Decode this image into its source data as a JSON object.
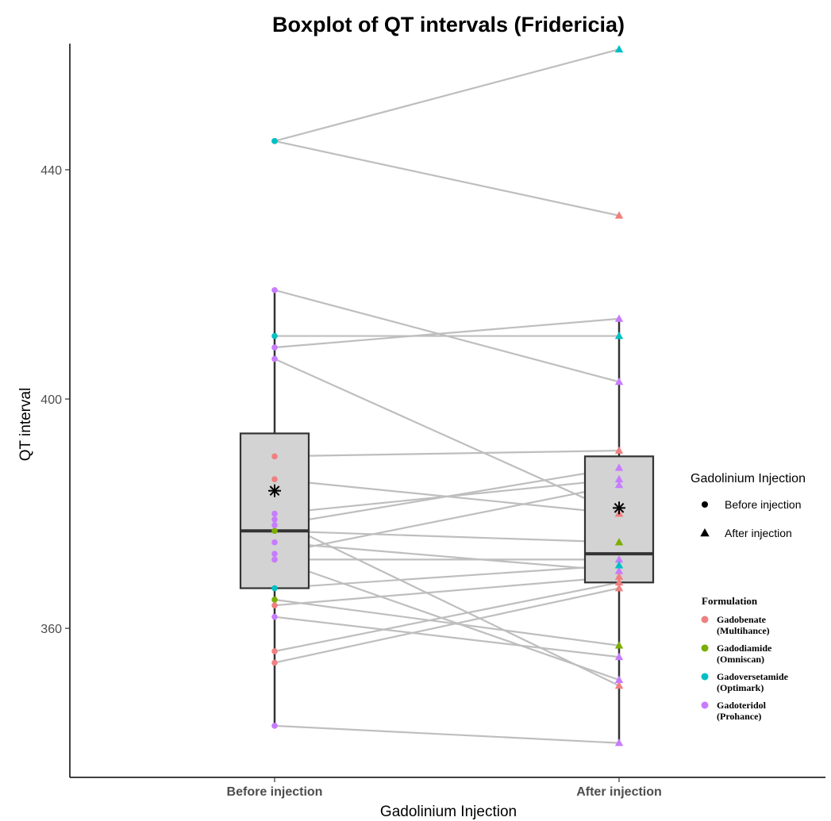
{
  "chart_data": {
    "type": "boxplot",
    "title": "Boxplot of QT intervals (Fridericia)",
    "xlabel": "Gadolinium Injection",
    "ylabel": "QT interval",
    "categories": [
      "Before injection",
      "After injection"
    ],
    "ylim": [
      334,
      462
    ],
    "yticks": [
      360,
      400,
      440
    ],
    "grid": false,
    "boxes": [
      {
        "category": "Before injection",
        "whisker_low": 343,
        "q1": 367,
        "median": 377,
        "q3": 394,
        "whisker_high": 419,
        "mean": 384
      },
      {
        "category": "After injection",
        "whisker_low": 340,
        "q1": 368,
        "median": 373,
        "q3": 390,
        "whisker_high": 414,
        "mean": 381
      }
    ],
    "points": [
      {
        "before": 445,
        "after": 461,
        "formulation": "Gadoversetamide (Optimark)"
      },
      {
        "before": 445,
        "after": 432,
        "formulation": "Gadoversetamide (Optimark)",
        "after_formulation": "Gadobenate (Multihance)"
      },
      {
        "before": 419,
        "after": 403,
        "formulation": "Gadoteridol (Prohance)"
      },
      {
        "before": 411,
        "after": 411,
        "formulation": "Gadoversetamide (Optimark)"
      },
      {
        "before": 409,
        "after": 414,
        "formulation": "Gadoteridol (Prohance)"
      },
      {
        "before": 407,
        "after": 380,
        "formulation": "Gadoteridol (Prohance)",
        "after_formulation": "Gadobenate (Multihance)"
      },
      {
        "before": 390,
        "after": 391,
        "formulation": "Gadobenate (Multihance)"
      },
      {
        "before": 386,
        "after": 380,
        "formulation": "Gadobenate (Multihance)"
      },
      {
        "before": 380,
        "after": 386,
        "formulation": "Gadoteridol (Prohance)"
      },
      {
        "before": 379,
        "after": 350,
        "formulation": "Gadoteridol (Prohance)",
        "after_formulation": "Gadobenate (Multihance)"
      },
      {
        "before": 378,
        "after": 388,
        "formulation": "Gadoteridol (Prohance)"
      },
      {
        "before": 377,
        "after": 375,
        "formulation": "Gadodiamide (Omniscan)"
      },
      {
        "before": 375,
        "after": 370,
        "formulation": "Gadoteridol (Prohance)"
      },
      {
        "before": 373,
        "after": 385,
        "formulation": "Gadoteridol (Prohance)"
      },
      {
        "before": 372,
        "after": 372,
        "formulation": "Gadobenate (Multihance)",
        "after_formulation": "Gadoteridol (Prohance)"
      },
      {
        "before": 372,
        "after": 351,
        "formulation": "Gadoteridol (Prohance)"
      },
      {
        "before": 367,
        "after": 371,
        "formulation": "Gadoversetamide (Optimark)"
      },
      {
        "before": 365,
        "after": 357,
        "formulation": "Gadodiamide (Omniscan)"
      },
      {
        "before": 364,
        "after": 369,
        "formulation": "Gadobenate (Multihance)"
      },
      {
        "before": 362,
        "after": 355,
        "formulation": "Gadoteridol (Prohance)"
      },
      {
        "before": 356,
        "after": 368,
        "formulation": "Gadobenate (Multihance)"
      },
      {
        "before": 354,
        "after": 367,
        "formulation": "Gadobenate (Multihance)"
      },
      {
        "before": 343,
        "after": 340,
        "formulation": "Gadoteridol (Prohance)"
      }
    ],
    "legend_shape": {
      "title": "Gadolinium Injection",
      "placement": "right",
      "entries": [
        {
          "label": "Before injection",
          "shape": "circle"
        },
        {
          "label": "After injection",
          "shape": "triangle"
        }
      ]
    },
    "legend_formulation": {
      "title": "Formulation",
      "placement": "right",
      "entries": [
        {
          "name": "Gadobenate (Multihance)",
          "line1": "Gadobenate",
          "line2": "(Multihance)",
          "color": "#f08080"
        },
        {
          "name": "Gadodiamide (Omniscan)",
          "line1": "Gadodiamide",
          "line2": "(Omniscan)",
          "color": "#7cae00"
        },
        {
          "name": "Gadoversetamide (Optimark)",
          "line1": "Gadoversetamide",
          "line2": "(Optimark)",
          "color": "#00bfc4"
        },
        {
          "name": "Gadoteridol (Prohance)",
          "line1": "Gadoteridol",
          "line2": "(Prohance)",
          "color": "#c77cff"
        }
      ]
    },
    "colors": {
      "box_fill": "#d3d3d3",
      "box_stroke": "#333333",
      "pair_line": "#bebebe",
      "axis": "#000000"
    }
  }
}
